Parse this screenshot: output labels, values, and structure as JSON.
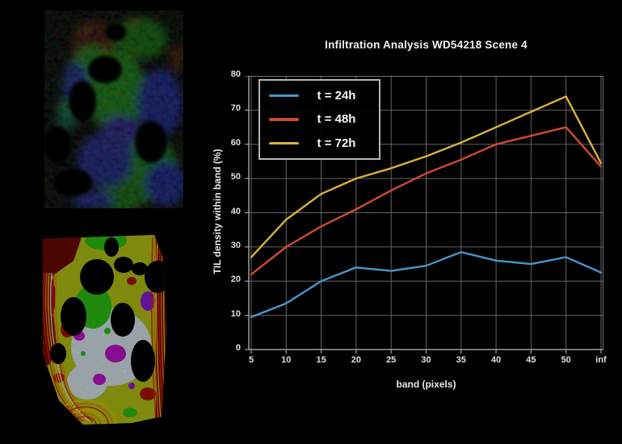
{
  "chart_data": {
    "type": "line",
    "title": "Infiltration Analysis WD54218 Scene 4",
    "xlabel": "band (pixels)",
    "ylabel": "TIL density within band (%)",
    "x_ticklabels": [
      "5",
      "10",
      "15",
      "20",
      "25",
      "30",
      "35",
      "40",
      "45",
      "50",
      "inf"
    ],
    "y_ticks": [
      0,
      10,
      20,
      30,
      40,
      50,
      60,
      70,
      80
    ],
    "ylim": [
      0,
      80
    ],
    "grid": true,
    "legend_position": "upper-left",
    "series": [
      {
        "name": "t = 24h",
        "color": "#4796cc",
        "values": [
          9.5,
          13.5,
          20,
          24,
          23,
          24.5,
          28.5,
          26,
          25,
          27,
          22.5
        ]
      },
      {
        "name": "t = 48h",
        "color": "#d04a30",
        "values": [
          22,
          30,
          36,
          41,
          46.5,
          51.5,
          55.5,
          60,
          62.5,
          65,
          53.5
        ]
      },
      {
        "name": "t = 72h",
        "color": "#d9b23c",
        "values": [
          27,
          38,
          45.5,
          50,
          53,
          56.5,
          60.5,
          65,
          69.5,
          74,
          54.5
        ]
      }
    ],
    "colors": {
      "background": "#000000",
      "grid": "#636363",
      "frame": "#9c9c9c",
      "text": "#ededed"
    }
  }
}
